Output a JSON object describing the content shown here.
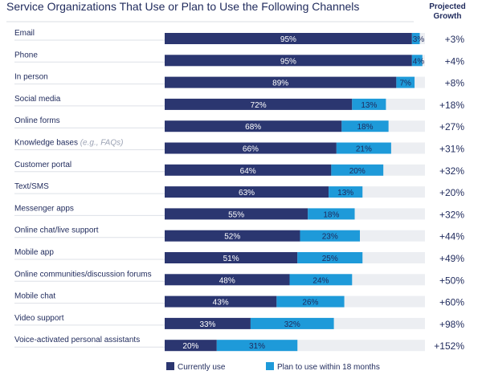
{
  "chart_data": {
    "type": "bar",
    "orientation": "horizontal",
    "stacked": true,
    "title": "Service Organizations That Use or Plan to Use the Following Channels",
    "growth_header": [
      "Projected",
      "Growth"
    ],
    "categories": [
      "Email",
      "Phone",
      "In person",
      "Social media",
      "Online forms",
      "Knowledge bases (e.g., FAQs)",
      "Customer portal",
      "Text/SMS",
      "Messenger apps",
      "Online chat/live support",
      "Mobile app",
      "Online communities/discussion forums",
      "Mobile chat",
      "Video support",
      "Voice-activated personal assistants"
    ],
    "series": [
      {
        "name": "Currently use",
        "values": [
          95,
          95,
          89,
          72,
          68,
          66,
          64,
          63,
          55,
          52,
          51,
          48,
          43,
          33,
          20
        ]
      },
      {
        "name": "Plan to use within 18 months",
        "values": [
          3,
          4,
          7,
          13,
          18,
          21,
          20,
          13,
          18,
          23,
          25,
          24,
          26,
          32,
          31
        ]
      }
    ],
    "projected_growth": [
      "+3%",
      "+4%",
      "+8%",
      "+18%",
      "+27%",
      "+31%",
      "+32%",
      "+20%",
      "+32%",
      "+44%",
      "+49%",
      "+50%",
      "+60%",
      "+98%",
      "+152%"
    ],
    "xlim": [
      0,
      100
    ],
    "legend_position": "bottom",
    "grid": false,
    "colors": {
      "current": "#2b3670",
      "plan": "#1e9ad9",
      "track": "#eceef2",
      "text": "#1f2a5c"
    }
  }
}
